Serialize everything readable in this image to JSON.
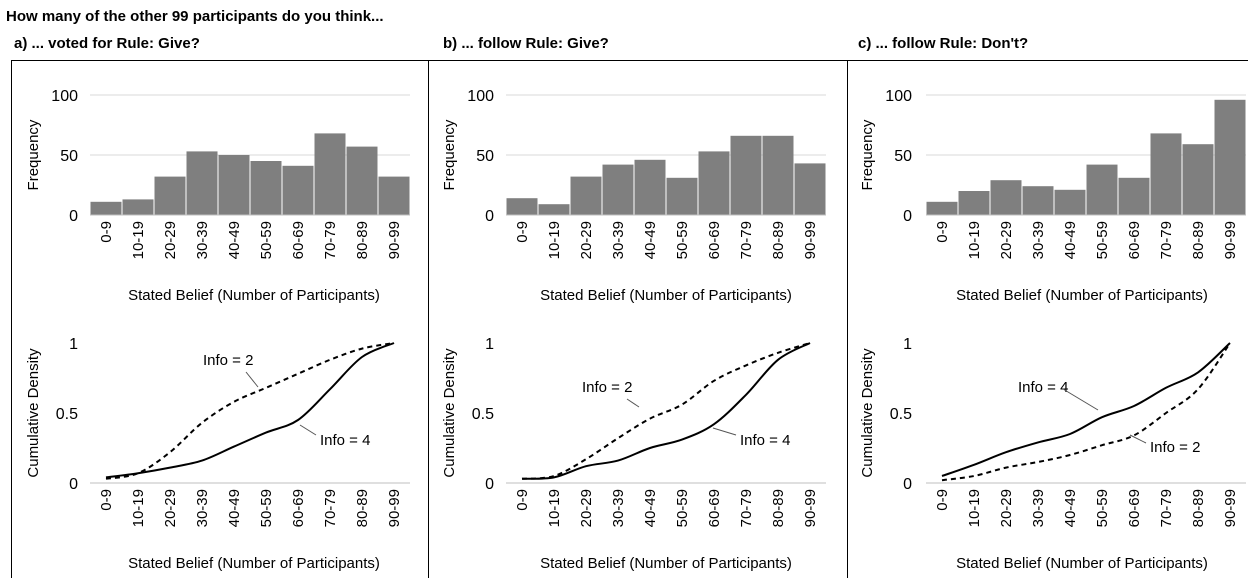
{
  "header": {
    "title": "How many of the other 99 participants do you think..."
  },
  "panels": [
    {
      "title": "a) ... voted for Rule: Give?"
    },
    {
      "title": "b) ... follow Rule: Give?"
    },
    {
      "title": "c) ... follow Rule: Don't?"
    }
  ],
  "colors": {
    "bar": "#7f7f7f",
    "line": "#000000",
    "grid": "#d9d9d9"
  },
  "chart_data": [
    {
      "panel": "a",
      "type": "bar",
      "categories": [
        "0-9",
        "10-19",
        "20-29",
        "30-39",
        "40-49",
        "50-59",
        "60-69",
        "70-79",
        "80-89",
        "90-99"
      ],
      "values": [
        11,
        13,
        32,
        53,
        50,
        45,
        41,
        68,
        57,
        32
      ],
      "ylabel": "Frequency",
      "xlabel": "Stated Belief (Number of Participants)",
      "ylim": [
        0,
        100
      ],
      "yticks": [
        "0",
        "50",
        "100"
      ],
      "grid": true
    },
    {
      "panel": "b",
      "type": "bar",
      "categories": [
        "0-9",
        "10-19",
        "20-29",
        "30-39",
        "40-49",
        "50-59",
        "60-69",
        "70-79",
        "80-89",
        "90-99"
      ],
      "values": [
        14,
        9,
        32,
        42,
        46,
        31,
        53,
        66,
        66,
        43
      ],
      "ylabel": "Frequency",
      "xlabel": "Stated Belief (Number of Participants)",
      "ylim": [
        0,
        100
      ],
      "yticks": [
        "0",
        "50",
        "100"
      ],
      "grid": true
    },
    {
      "panel": "c",
      "type": "bar",
      "categories": [
        "0-9",
        "10-19",
        "20-29",
        "30-39",
        "40-49",
        "50-59",
        "60-69",
        "70-79",
        "80-89",
        "90-99"
      ],
      "values": [
        11,
        20,
        29,
        24,
        21,
        42,
        31,
        68,
        59,
        96
      ],
      "ylabel": "Frequency",
      "xlabel": "Stated Belief (Number of Participants)",
      "ylim": [
        0,
        100
      ],
      "yticks": [
        "0",
        "50",
        "100"
      ],
      "grid": true
    },
    {
      "panel": "a",
      "type": "line",
      "categories": [
        "0-9",
        "10-19",
        "20-29",
        "30-39",
        "40-49",
        "50-59",
        "60-69",
        "70-79",
        "80-89",
        "90-99"
      ],
      "series": [
        {
          "name": "Info = 2",
          "dash": true,
          "values": [
            0.03,
            0.07,
            0.22,
            0.43,
            0.58,
            0.68,
            0.78,
            0.88,
            0.96,
            1.0
          ]
        },
        {
          "name": "Info = 4",
          "dash": false,
          "values": [
            0.04,
            0.07,
            0.11,
            0.16,
            0.26,
            0.36,
            0.45,
            0.67,
            0.9,
            1.0
          ]
        }
      ],
      "ylabel": "Cumulative Density",
      "xlabel": "Stated Belief (Number of Participants)",
      "ylim": [
        0,
        1
      ],
      "yticks": [
        "0",
        "0.5",
        "1"
      ],
      "grid": false
    },
    {
      "panel": "b",
      "type": "line",
      "categories": [
        "0-9",
        "10-19",
        "20-29",
        "30-39",
        "40-49",
        "50-59",
        "60-69",
        "70-79",
        "80-89",
        "90-99"
      ],
      "series": [
        {
          "name": "Info = 2",
          "dash": true,
          "values": [
            0.03,
            0.05,
            0.17,
            0.32,
            0.46,
            0.56,
            0.73,
            0.84,
            0.93,
            1.0
          ]
        },
        {
          "name": "Info = 4",
          "dash": false,
          "values": [
            0.03,
            0.04,
            0.12,
            0.16,
            0.25,
            0.31,
            0.42,
            0.63,
            0.88,
            1.0
          ]
        }
      ],
      "ylabel": "Cumulative Density",
      "xlabel": "Stated Belief (Number of Participants)",
      "ylim": [
        0,
        1
      ],
      "yticks": [
        "0",
        "0.5",
        "1"
      ],
      "grid": false
    },
    {
      "panel": "c",
      "type": "line",
      "categories": [
        "0-9",
        "10-19",
        "20-29",
        "30-39",
        "40-49",
        "50-59",
        "60-69",
        "70-79",
        "80-89",
        "90-99"
      ],
      "series": [
        {
          "name": "Info = 4",
          "dash": false,
          "values": [
            0.05,
            0.13,
            0.22,
            0.29,
            0.35,
            0.47,
            0.55,
            0.68,
            0.79,
            1.0
          ]
        },
        {
          "name": "Info = 2",
          "dash": true,
          "values": [
            0.02,
            0.05,
            0.11,
            0.15,
            0.2,
            0.27,
            0.34,
            0.5,
            0.67,
            1.0
          ]
        }
      ],
      "ylabel": "Cumulative Density",
      "xlabel": "Stated Belief (Number of Participants)",
      "ylim": [
        0,
        1
      ],
      "yticks": [
        "0",
        "0.5",
        "1"
      ],
      "grid": false
    }
  ]
}
